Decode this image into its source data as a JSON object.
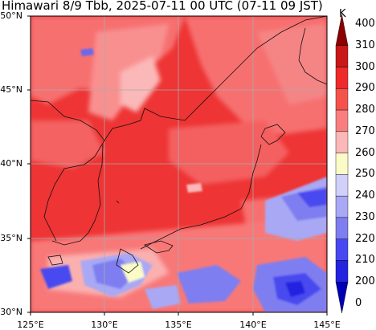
{
  "title": "Himawari 8/9 Tbb, 2025-07-11 00 UTC (07-11 09 JST)",
  "latitude_labels": [
    "50°N",
    "45°N",
    "40°N",
    "35°N",
    "30°N"
  ],
  "longitude_labels": [
    "125°E",
    "130°E",
    "135°E",
    "140°E",
    "145°E"
  ],
  "colorbar": {
    "unit": "K",
    "levels": [
      "400",
      "310",
      "300",
      "290",
      "280",
      "270",
      "260",
      "250",
      "240",
      "230",
      "220",
      "210",
      "200",
      "0"
    ],
    "colors": [
      "#8b0000",
      "#c81818",
      "#ee2a2a",
      "#f5524c",
      "#f97f7f",
      "#fbb8b8",
      "#fbfbc8",
      "#d0d0fb",
      "#a8a8f5",
      "#7e7ef0",
      "#4848f0",
      "#2424e0",
      "#0000b4"
    ]
  },
  "map": {
    "lon_range": [
      125,
      145
    ],
    "lat_range": [
      30,
      50
    ],
    "background_colors": {
      "warm": "#f04040",
      "mid": "#f87070",
      "pale": "#fbb0b0",
      "cold": "#6868f0",
      "coast": "#000000",
      "grid": "#aaaaaa"
    }
  }
}
